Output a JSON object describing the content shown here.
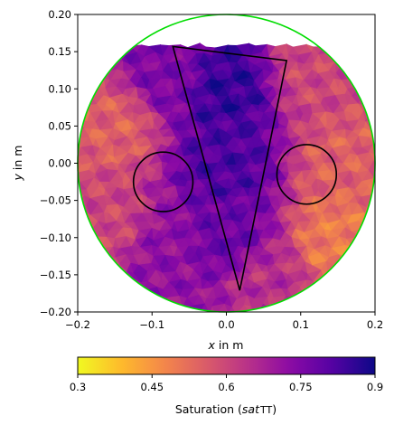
{
  "chart_data": {
    "type": "heatmap",
    "description_kind": "triangular-mesh saturation field",
    "xlabel": "x in m",
    "ylabel": "y in m",
    "xlim": [
      -0.2,
      0.2
    ],
    "ylim": [
      -0.2,
      0.2
    ],
    "x_ticks": [
      -0.2,
      -0.1,
      0.0,
      0.1,
      0.2
    ],
    "x_tick_labels": [
      "−0.2",
      "−0.1",
      "0.0",
      "0.1",
      "0.2"
    ],
    "y_ticks": [
      0.2,
      0.15,
      0.1,
      0.05,
      0.0,
      -0.05,
      -0.1,
      -0.15,
      -0.2
    ],
    "y_tick_labels": [
      "0.20",
      "0.15",
      "0.10",
      "0.05",
      "0.00",
      "−0.05",
      "−0.10",
      "−0.15",
      "−0.20"
    ],
    "domain": {
      "shape": "circle",
      "center": [
        0.0,
        0.0
      ],
      "radius": 0.2,
      "boundary_color": "#00dd00"
    },
    "inclusions": [
      {
        "shape": "circle",
        "center": [
          -0.085,
          -0.025
        ],
        "radius": 0.04,
        "color": "#000000"
      },
      {
        "shape": "circle",
        "center": [
          0.108,
          -0.015
        ],
        "radius": 0.04,
        "color": "#000000"
      },
      {
        "shape": "triangle",
        "vertices": [
          [
            -0.072,
            0.157
          ],
          [
            0.081,
            0.138
          ],
          [
            0.018,
            -0.171
          ]
        ],
        "color": "#000000"
      }
    ],
    "colorbar": {
      "label": "Saturation (sat TT)",
      "label_plain": "Saturation (",
      "label_italic": "sat",
      "label_tail": "TT",
      "label_close": ")",
      "min": 0.3,
      "max": 0.9,
      "ticks": [
        0.3,
        0.45,
        0.6,
        0.75,
        0.9
      ],
      "tick_labels": [
        "0.3",
        "0.45",
        "0.6",
        "0.75",
        "0.9"
      ],
      "colormap": "plasma_r",
      "orientation": "horizontal"
    },
    "field_samples": [
      {
        "x": 0.0,
        "y": 0.1,
        "value": 0.85
      },
      {
        "x": 0.0,
        "y": 0.0,
        "value": 0.82
      },
      {
        "x": 0.0,
        "y": -0.1,
        "value": 0.78
      },
      {
        "x": -0.08,
        "y": 0.12,
        "value": 0.75
      },
      {
        "x": -0.15,
        "y": 0.05,
        "value": 0.55
      },
      {
        "x": -0.16,
        "y": -0.08,
        "value": 0.6
      },
      {
        "x": -0.08,
        "y": -0.12,
        "value": 0.72
      },
      {
        "x": 0.12,
        "y": 0.12,
        "value": 0.6
      },
      {
        "x": 0.16,
        "y": 0.0,
        "value": 0.55
      },
      {
        "x": 0.15,
        "y": -0.1,
        "value": 0.5
      },
      {
        "x": 0.05,
        "y": -0.16,
        "value": 0.65
      }
    ]
  }
}
